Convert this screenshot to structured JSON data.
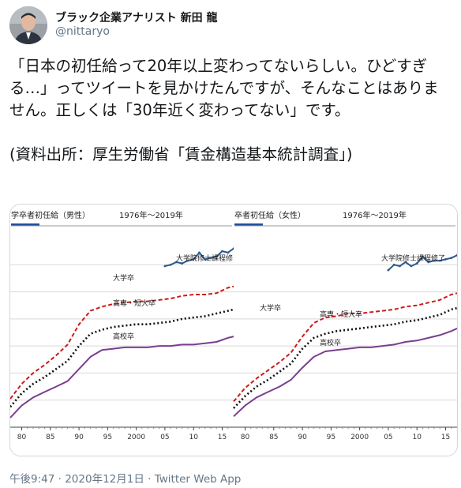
{
  "tweet": {
    "display_name": "ブラック企業アナリスト 新田 龍",
    "handle": "@nittaryo",
    "text": "「日本の初任給って20年以上変わってないらしい。ひどすぎる…」ってツイートを見かけたんですが、そんなことはありません。正しくは「30年近く変わってない」です。\n\n(資料出所：厚生労働省「賃金構造基本統計調査」)",
    "time": "午後9:47",
    "separator": "·",
    "date": "2020年12月1日",
    "source": "Twitter Web App"
  },
  "colors": {
    "university": "#cc1b1b",
    "junior_college": "#111111",
    "high_school": "#7a3e8f",
    "graduate": "#2e5a8a",
    "panel_top_bar": "#1f4e9b",
    "grid": "#d9d9d9"
  },
  "chart_data": [
    {
      "type": "line",
      "title": "学卒者初任給（男性）",
      "period": "1976年～2019年",
      "x_ticks": [
        "80",
        "85",
        "90",
        "95",
        "2000",
        "05",
        "10",
        "15"
      ],
      "x_range": [
        1978,
        2017
      ],
      "y_range": [
        0,
        7
      ],
      "grid": true,
      "series": [
        {
          "name": "大学院修士課程修了",
          "label": "大学院修士課程修",
          "style": "solid",
          "x": [
            2005,
            2006,
            2007,
            2008,
            2009,
            2010,
            2011,
            2012,
            2013,
            2014,
            2015,
            2016,
            2017
          ],
          "y": [
            5.95,
            6.0,
            6.1,
            6.05,
            6.15,
            6.2,
            6.45,
            6.2,
            6.25,
            6.3,
            6.5,
            6.45,
            6.6
          ]
        },
        {
          "name": "大学卒",
          "label": "大学卒",
          "style": "dashed",
          "x": [
            1978,
            1980,
            1982,
            1984,
            1986,
            1988,
            1990,
            1992,
            1994,
            1996,
            1998,
            2000,
            2002,
            2004,
            2006,
            2008,
            2010,
            2012,
            2014,
            2016,
            2017
          ],
          "y": [
            1.05,
            1.6,
            2.0,
            2.3,
            2.65,
            3.05,
            3.8,
            4.3,
            4.45,
            4.55,
            4.6,
            4.65,
            4.65,
            4.7,
            4.75,
            4.85,
            4.9,
            4.9,
            4.95,
            5.15,
            5.2
          ]
        },
        {
          "name": "高専・短大卒",
          "label": "高専・短大卒",
          "style": "dotted",
          "x": [
            1978,
            1980,
            1982,
            1984,
            1986,
            1988,
            1990,
            1992,
            1994,
            1996,
            1998,
            2000,
            2002,
            2004,
            2006,
            2008,
            2010,
            2012,
            2014,
            2016,
            2017
          ],
          "y": [
            0.75,
            1.25,
            1.6,
            1.85,
            2.15,
            2.45,
            3.0,
            3.45,
            3.6,
            3.7,
            3.75,
            3.8,
            3.8,
            3.85,
            3.9,
            4.0,
            4.05,
            4.1,
            4.2,
            4.3,
            4.35
          ]
        },
        {
          "name": "高校卒",
          "label": "高校卒",
          "style": "solid",
          "x": [
            1978,
            1980,
            1982,
            1984,
            1986,
            1988,
            1990,
            1992,
            1994,
            1996,
            1998,
            2000,
            2002,
            2004,
            2006,
            2008,
            2010,
            2012,
            2014,
            2016,
            2017
          ],
          "y": [
            0.35,
            0.8,
            1.1,
            1.3,
            1.5,
            1.7,
            2.15,
            2.6,
            2.85,
            2.9,
            2.95,
            2.95,
            2.95,
            3.0,
            3.0,
            3.05,
            3.05,
            3.1,
            3.15,
            3.3,
            3.35
          ]
        }
      ]
    },
    {
      "type": "line",
      "title": "卒者初任給（女性）",
      "period": "1976年～2019年",
      "x_ticks": [
        "80",
        "85",
        "90",
        "95",
        "2000",
        "05",
        "10",
        "15"
      ],
      "x_range": [
        1978,
        2017
      ],
      "y_range": [
        0,
        7
      ],
      "grid": true,
      "series": [
        {
          "name": "大学院修士課程修了",
          "label": "大学院修士課程修了",
          "style": "solid",
          "x": [
            2005,
            2006,
            2007,
            2008,
            2009,
            2010,
            2011,
            2012,
            2013,
            2014,
            2015,
            2016,
            2017
          ],
          "y": [
            5.8,
            6.0,
            5.95,
            6.1,
            5.95,
            6.05,
            6.3,
            6.1,
            6.15,
            6.15,
            6.2,
            6.25,
            6.35
          ]
        },
        {
          "name": "大学卒",
          "label": "大学卒",
          "style": "dashed",
          "x": [
            1978,
            1980,
            1982,
            1984,
            1986,
            1988,
            1990,
            1992,
            1994,
            1996,
            1998,
            2000,
            2002,
            2004,
            2006,
            2008,
            2010,
            2012,
            2014,
            2016,
            2017
          ],
          "y": [
            0.95,
            1.45,
            1.8,
            2.1,
            2.4,
            2.75,
            3.35,
            3.85,
            4.05,
            4.1,
            4.2,
            4.2,
            4.25,
            4.3,
            4.35,
            4.45,
            4.5,
            4.6,
            4.7,
            4.9,
            4.95
          ]
        },
        {
          "name": "高専・短大卒",
          "label": "高専・短大卒",
          "style": "dotted",
          "x": [
            1978,
            1980,
            1982,
            1984,
            1986,
            1988,
            1990,
            1992,
            1994,
            1996,
            1998,
            2000,
            2002,
            2004,
            2006,
            2008,
            2010,
            2012,
            2014,
            2016,
            2017
          ],
          "y": [
            0.7,
            1.15,
            1.5,
            1.75,
            2.05,
            2.35,
            2.9,
            3.3,
            3.45,
            3.55,
            3.6,
            3.65,
            3.7,
            3.75,
            3.8,
            3.9,
            3.95,
            4.05,
            4.15,
            4.35,
            4.4
          ]
        },
        {
          "name": "高校卒",
          "label": "高校卒",
          "style": "solid",
          "x": [
            1978,
            1980,
            1982,
            1984,
            1986,
            1988,
            1990,
            1992,
            1994,
            1996,
            1998,
            2000,
            2002,
            2004,
            2006,
            2008,
            2010,
            2012,
            2014,
            2016,
            2017
          ],
          "y": [
            0.4,
            0.8,
            1.1,
            1.3,
            1.5,
            1.75,
            2.2,
            2.6,
            2.8,
            2.85,
            2.9,
            2.95,
            2.95,
            3.0,
            3.05,
            3.15,
            3.2,
            3.3,
            3.4,
            3.55,
            3.65
          ]
        }
      ]
    }
  ]
}
